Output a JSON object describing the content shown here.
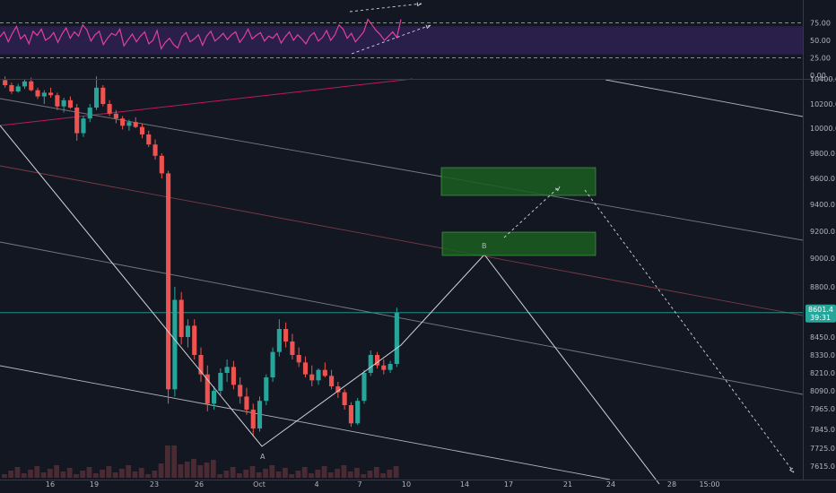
{
  "colors": {
    "background": "#131722",
    "axis_bg": "#131722",
    "grid": "#1e222d",
    "up": "#26a69a",
    "down": "#ef5350",
    "rsi_line": "#e040a0",
    "rsi_band": "#2a1f4a",
    "rsi_level": "#b2b5be",
    "trendline_white": "#d1d4dc",
    "trendline_red": "#c2185b",
    "channel_gray": "#787b86",
    "channel_red": "#7b3a46",
    "box_fill": "#1b5e20",
    "box_border": "#4caf50",
    "price_line": "#26a69a",
    "price_badge": "#26a69a",
    "volume": "#4a2b33"
  },
  "chart_data": [
    {
      "type": "line",
      "name": "rsi-pane",
      "series": [
        {
          "values": [
            55,
            62,
            48,
            60,
            70,
            52,
            58,
            45,
            63,
            57,
            66,
            50,
            54,
            61,
            47,
            59,
            68,
            53,
            62,
            56,
            72,
            65,
            49,
            58,
            63,
            44,
            53,
            60,
            57,
            66,
            42,
            51,
            59,
            48,
            56,
            62,
            45,
            50,
            64,
            38,
            47,
            53,
            44,
            39,
            55,
            61,
            48,
            52,
            58,
            43,
            56,
            63,
            49,
            54,
            60,
            51,
            58,
            62,
            47,
            55,
            66,
            52,
            57,
            61,
            49,
            56,
            53,
            60,
            46,
            55,
            62,
            50,
            58,
            52,
            45,
            56,
            61,
            49,
            54,
            64,
            50,
            58,
            72,
            66,
            53,
            60,
            48,
            55,
            62,
            80,
            72,
            64,
            58,
            50,
            56,
            62,
            54,
            80
          ]
        }
      ],
      "levels": [
        {
          "value": 25,
          "label": "25.00"
        },
        {
          "value": 50,
          "label": "50.00"
        },
        {
          "value": 75,
          "label": "75.00"
        }
      ],
      "ytick_labels": [
        "75.00",
        "50.00",
        "25.00",
        "0.00"
      ],
      "ylim": [
        0,
        100
      ],
      "band": [
        30,
        70
      ]
    },
    {
      "type": "candlestick",
      "name": "price-pane",
      "ylim": [
        7600,
        10400
      ],
      "ytick_labels": [
        "10400.0",
        "10200.0",
        "10000.0",
        "9800.0",
        "9600.0",
        "9400.0",
        "9200.0",
        "9000.0",
        "8800.0",
        "8600.0",
        "8450.0",
        "8330.0",
        "8210.0",
        "8090.0",
        "7965.0",
        "7845.0",
        "7725.0",
        "7615.0"
      ],
      "xtick_labels": [
        "16",
        "19",
        "23",
        "26",
        "Oct",
        "4",
        "7",
        "10",
        "14",
        "17",
        "21",
        "24",
        "28",
        "15:00"
      ],
      "current_price": "8601.4",
      "countdown": "39:31",
      "annotations": [
        "A",
        "B"
      ],
      "candles": [
        [
          10390,
          10420,
          10330,
          10350
        ],
        [
          10350,
          10370,
          10280,
          10300
        ],
        [
          10300,
          10360,
          10290,
          10340
        ],
        [
          10340,
          10400,
          10320,
          10380
        ],
        [
          10380,
          10410,
          10300,
          10310
        ],
        [
          10310,
          10330,
          10240,
          10260
        ],
        [
          10260,
          10310,
          10200,
          10290
        ],
        [
          10290,
          10330,
          10250,
          10270
        ],
        [
          10270,
          10290,
          10150,
          10180
        ],
        [
          10180,
          10250,
          10130,
          10230
        ],
        [
          10230,
          10260,
          10160,
          10170
        ],
        [
          10170,
          10200,
          9900,
          9960
        ],
        [
          9960,
          10100,
          9930,
          10080
        ],
        [
          10080,
          10200,
          10050,
          10170
        ],
        [
          10170,
          10420,
          10150,
          10330
        ],
        [
          10330,
          10350,
          10180,
          10200
        ],
        [
          10200,
          10230,
          10100,
          10120
        ],
        [
          10120,
          10150,
          10040,
          10080
        ],
        [
          10080,
          10100,
          9990,
          10020
        ],
        [
          10020,
          10070,
          9980,
          10050
        ],
        [
          10050,
          10090,
          10000,
          10010
        ],
        [
          10010,
          10040,
          9920,
          9950
        ],
        [
          9950,
          9980,
          9850,
          9870
        ],
        [
          9870,
          9910,
          9750,
          9780
        ],
        [
          9780,
          9800,
          9600,
          9640
        ],
        [
          9640,
          9660,
          8000,
          8100
        ],
        [
          8100,
          8800,
          8050,
          8700
        ],
        [
          8700,
          8760,
          8400,
          8450
        ],
        [
          8450,
          8560,
          8380,
          8520
        ],
        [
          8520,
          8560,
          8300,
          8330
        ],
        [
          8330,
          8380,
          8150,
          8200
        ],
        [
          8200,
          8260,
          7950,
          8000
        ],
        [
          8000,
          8120,
          7960,
          8090
        ],
        [
          8090,
          8240,
          8060,
          8210
        ],
        [
          8210,
          8300,
          8150,
          8250
        ],
        [
          8250,
          8290,
          8100,
          8130
        ],
        [
          8130,
          8180,
          8000,
          8050
        ],
        [
          8050,
          8110,
          7930,
          7960
        ],
        [
          7960,
          8000,
          7800,
          7850
        ],
        [
          7850,
          8050,
          7830,
          8020
        ],
        [
          8020,
          8200,
          7990,
          8180
        ],
        [
          8180,
          8380,
          8150,
          8350
        ],
        [
          8350,
          8560,
          8320,
          8500
        ],
        [
          8500,
          8540,
          8380,
          8420
        ],
        [
          8420,
          8470,
          8300,
          8330
        ],
        [
          8330,
          8380,
          8250,
          8280
        ],
        [
          8280,
          8320,
          8180,
          8200
        ],
        [
          8200,
          8260,
          8120,
          8160
        ],
        [
          8160,
          8240,
          8130,
          8230
        ],
        [
          8230,
          8280,
          8180,
          8190
        ],
        [
          8190,
          8230,
          8100,
          8120
        ],
        [
          8120,
          8150,
          8040,
          8080
        ],
        [
          8080,
          8100,
          7960,
          7990
        ],
        [
          7990,
          8010,
          7860,
          7880
        ],
        [
          7880,
          8040,
          7870,
          8020
        ],
        [
          8020,
          8230,
          8000,
          8210
        ],
        [
          8210,
          8360,
          8190,
          8330
        ],
        [
          8330,
          8350,
          8240,
          8260
        ],
        [
          8260,
          8300,
          8200,
          8230
        ],
        [
          8230,
          8290,
          8210,
          8270
        ],
        [
          8270,
          8640,
          8250,
          8600
        ]
      ]
    }
  ]
}
